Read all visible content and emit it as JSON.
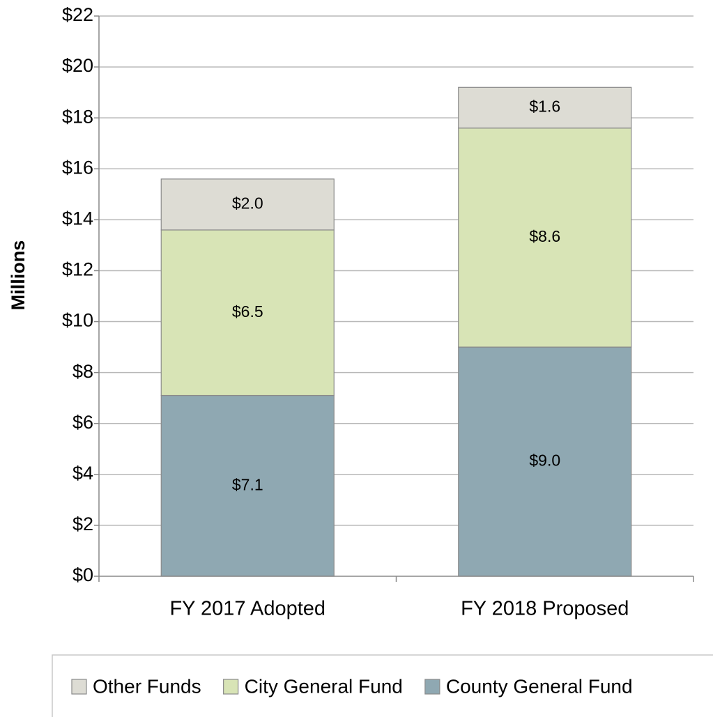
{
  "chart_data": {
    "type": "stacked_bar",
    "y_label": "Millions",
    "categories": [
      "FY 2017 Adopted",
      "FY 2018 Proposed"
    ],
    "series": [
      {
        "name": "County General Fund",
        "color": "#8fa8b2",
        "values": [
          7.1,
          9.0
        ],
        "value_labels": [
          "$7.1",
          "$9.0"
        ]
      },
      {
        "name": "City General Fund",
        "color": "#d8e4b6",
        "values": [
          6.5,
          8.6
        ],
        "value_labels": [
          "$6.5",
          "$8.6"
        ]
      },
      {
        "name": "Other Funds",
        "color": "#dddcd4",
        "values": [
          2.0,
          1.6
        ],
        "value_labels": [
          "$2.0",
          "$1.6"
        ]
      }
    ],
    "ylim": [
      0,
      22
    ],
    "yticks": [
      {
        "value": 0,
        "label": "$0"
      },
      {
        "value": 2,
        "label": "$2"
      },
      {
        "value": 4,
        "label": "$4"
      },
      {
        "value": 6,
        "label": "$6"
      },
      {
        "value": 8,
        "label": "$8"
      },
      {
        "value": 10,
        "label": "$10"
      },
      {
        "value": 12,
        "label": "$12"
      },
      {
        "value": 14,
        "label": "$14"
      },
      {
        "value": 16,
        "label": "$16"
      },
      {
        "value": 18,
        "label": "$18"
      },
      {
        "value": 20,
        "label": "$20"
      },
      {
        "value": 22,
        "label": "$22"
      }
    ],
    "grid": true,
    "legend": "bottom"
  }
}
